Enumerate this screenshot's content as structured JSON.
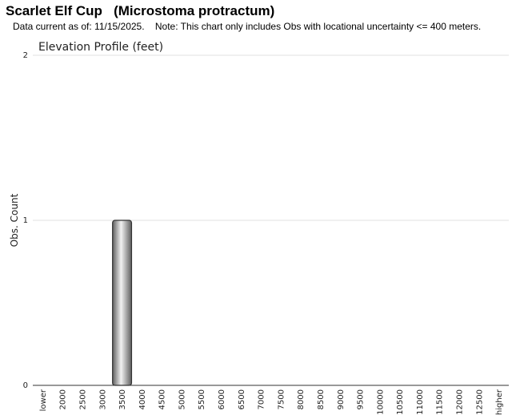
{
  "header": {
    "title": "Scarlet Elf Cup   (Microstoma protractum)",
    "subtitle": "Data current as of: 11/15/2025.    Note: This chart only includes Obs with locational uncertainty <= 400 meters."
  },
  "chart_data": {
    "type": "bar",
    "title": "Elevation Profile (feet)",
    "xlabel": "",
    "ylabel": "Obs. Count",
    "categories": [
      "lower",
      "2000",
      "2500",
      "3000",
      "3500",
      "4000",
      "4500",
      "5000",
      "5500",
      "6000",
      "6500",
      "7000",
      "7500",
      "8000",
      "8500",
      "9000",
      "9500",
      "10000",
      "10500",
      "11000",
      "11500",
      "12000",
      "12500",
      "higher"
    ],
    "values": [
      0,
      0,
      0,
      0,
      1,
      0,
      0,
      0,
      0,
      0,
      0,
      0,
      0,
      0,
      0,
      0,
      0,
      0,
      0,
      0,
      0,
      0,
      0,
      0
    ],
    "ylim": [
      0,
      2
    ],
    "yticks": [
      0,
      1,
      2
    ],
    "grid": true,
    "legend": "none",
    "bar_color": "#a0a0a0"
  }
}
